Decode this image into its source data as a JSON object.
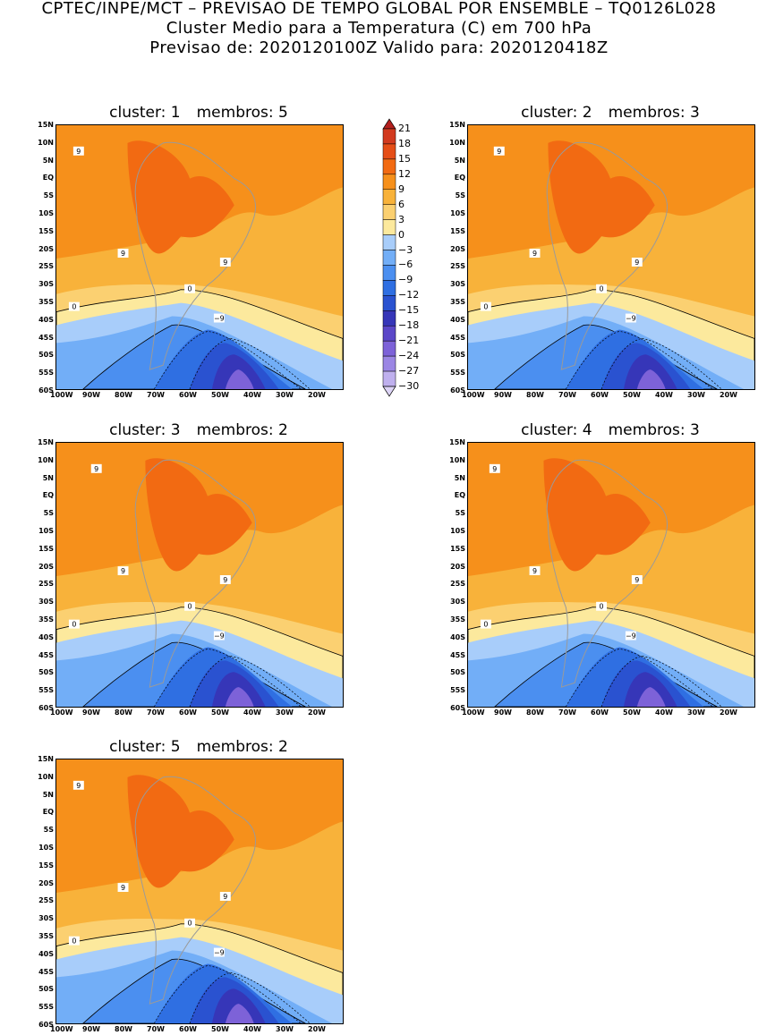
{
  "header": {
    "line1": "CPTEC/INPE/MCT – PREVISAO DE TEMPO GLOBAL POR ENSEMBLE – TQ0126L028",
    "line2": "Cluster Medio para a Temperatura (C) em 700 hPa",
    "line3": "Previsao de: 2020120100Z    Valido para: 2020120418Z"
  },
  "panels": [
    {
      "cluster": "cluster: 1",
      "membros": "membros: 5"
    },
    {
      "cluster": "cluster: 2",
      "membros": "membros: 3"
    },
    {
      "cluster": "cluster: 3",
      "membros": "membros: 2"
    },
    {
      "cluster": "cluster: 4",
      "membros": "membros: 3"
    },
    {
      "cluster": "cluster: 5",
      "membros": "membros: 2"
    }
  ],
  "lat_labels": [
    "15N",
    "10N",
    "5N",
    "EQ",
    "5S",
    "10S",
    "15S",
    "20S",
    "25S",
    "30S",
    "35S",
    "40S",
    "45S",
    "50S",
    "55S",
    "60S"
  ],
  "lon_labels": [
    "100W",
    "90W",
    "80W",
    "70W",
    "60W",
    "50W",
    "40W",
    "30W",
    "20W"
  ],
  "contour_labels": {
    "zero": "0",
    "nine": "9",
    "minus_nine": "−9"
  },
  "colorbar": {
    "labels": [
      "21",
      "18",
      "15",
      "12",
      "9",
      "6",
      "3",
      "0",
      "−3",
      "−6",
      "−9",
      "−12",
      "−15",
      "−18",
      "−21",
      "−24",
      "−27",
      "−30"
    ],
    "colors": [
      "#b4201e",
      "#d23a1f",
      "#e54e17",
      "#f26a12",
      "#f6901b",
      "#f8b23a",
      "#fbd071",
      "#fce99d",
      "#a8cdfa",
      "#72aef7",
      "#4b8ff0",
      "#2f6fe2",
      "#2a52d0",
      "#3636b8",
      "#5b47c8",
      "#7d62d8",
      "#9b86e4",
      "#bfb0ee",
      "#ddd4f6"
    ]
  }
}
